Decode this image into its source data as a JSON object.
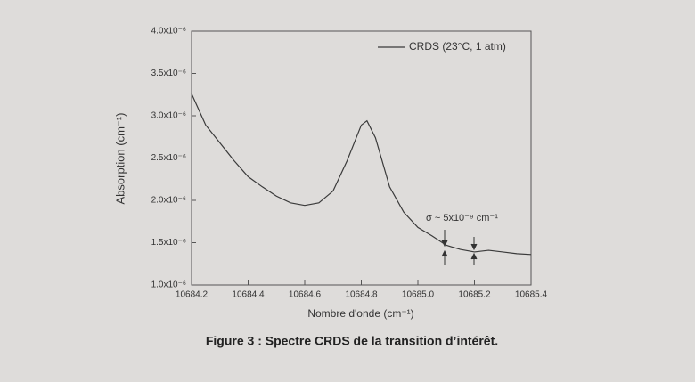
{
  "chart_data": {
    "type": "line",
    "x_label": "Nombre d'onde (cm⁻¹)",
    "y_label": "Absorption (cm⁻¹)",
    "x": [
      10684.2,
      10684.25,
      10684.3,
      10684.35,
      10684.4,
      10684.45,
      10684.5,
      10684.55,
      10684.6,
      10684.65,
      10684.7,
      10684.75,
      10684.8,
      10684.82,
      10684.85,
      10684.9,
      10684.95,
      10685.0,
      10685.05,
      10685.1,
      10685.15,
      10685.2,
      10685.25,
      10685.3,
      10685.35,
      10685.4
    ],
    "series": [
      {
        "name": "CRDS (23°C, 1 atm)",
        "color": "#3a3a3a",
        "values": [
          3.26e-06,
          2.89e-06,
          2.68e-06,
          2.47e-06,
          2.28e-06,
          2.16e-06,
          2.05e-06,
          1.97e-06,
          1.94e-06,
          1.97e-06,
          2.11e-06,
          2.47e-06,
          2.89e-06,
          2.94e-06,
          2.74e-06,
          2.16e-06,
          1.86e-06,
          1.68e-06,
          1.58e-06,
          1.47e-06,
          1.42e-06,
          1.39e-06,
          1.41e-06,
          1.39e-06,
          1.37e-06,
          1.36e-06
        ]
      }
    ],
    "xlim": [
      10684.2,
      10685.4
    ],
    "xticks": [
      10684.2,
      10684.4,
      10684.6,
      10684.8,
      {
        "value": 10685,
        "label": "10685.0"
      },
      10685.2,
      10685.4
    ],
    "ylim": [
      1e-06,
      4e-06
    ],
    "yticks": [
      {
        "value": 1e-06,
        "label": "1.0x10⁻⁶"
      },
      {
        "value": 1.5e-06,
        "label": "1.5x10⁻⁶"
      },
      {
        "value": 2e-06,
        "label": "2.0x10⁻⁶"
      },
      {
        "value": 2.5e-06,
        "label": "2.5x10⁻⁶"
      },
      {
        "value": 3e-06,
        "label": "3.0x10⁻⁶"
      },
      {
        "value": 3.5e-06,
        "label": "3.5x10⁻⁶"
      },
      {
        "value": 4e-06,
        "label": "4.0x10⁻⁶"
      }
    ],
    "legend": "upper right",
    "annotation": "σ ~ 5x10⁻⁹ cm⁻¹",
    "caption": "Figure 3 : Spectre CRDS de la transition d’intérêt."
  }
}
